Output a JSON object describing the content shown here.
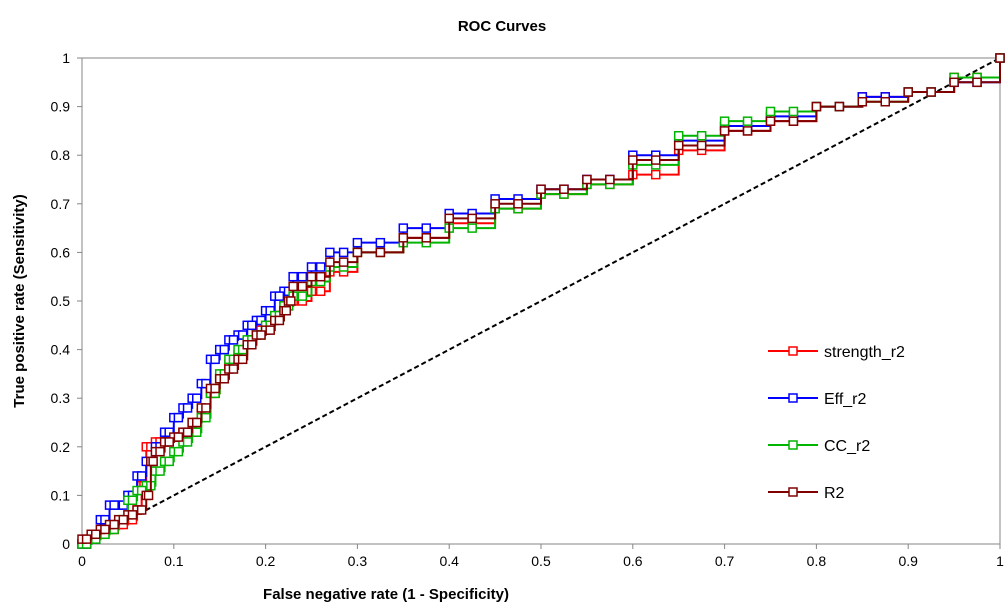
{
  "chart_data": {
    "type": "line",
    "title": "ROC Curves",
    "xlabel": "False negative rate (1 - Specificity)",
    "ylabel": "True positive rate (Sensitivity)",
    "xlim": [
      0,
      1
    ],
    "ylim": [
      0,
      1
    ],
    "x_ticks": [
      "0",
      "0.1",
      "0.2",
      "0.3",
      "0.4",
      "0.5",
      "0.6",
      "0.7",
      "0.8",
      "0.9",
      "1"
    ],
    "y_ticks": [
      "0",
      "0.1",
      "0.2",
      "0.3",
      "0.4",
      "0.5",
      "0.6",
      "0.7",
      "0.8",
      "0.9",
      "1"
    ],
    "grid": false,
    "legend_position": "right",
    "reference_line": {
      "style": "dashed",
      "color": "#000000",
      "points": [
        [
          0,
          0
        ],
        [
          1,
          1
        ]
      ]
    },
    "series": [
      {
        "name": "strength_r2",
        "color": "#ff0000",
        "points": [
          [
            0,
            0
          ],
          [
            0.01,
            0.01
          ],
          [
            0.02,
            0.02
          ],
          [
            0.03,
            0.03
          ],
          [
            0.04,
            0.04
          ],
          [
            0.05,
            0.05
          ],
          [
            0.06,
            0.07
          ],
          [
            0.065,
            0.12
          ],
          [
            0.07,
            0.2
          ],
          [
            0.08,
            0.21
          ],
          [
            0.09,
            0.21
          ],
          [
            0.1,
            0.22
          ],
          [
            0.11,
            0.23
          ],
          [
            0.12,
            0.25
          ],
          [
            0.13,
            0.27
          ],
          [
            0.14,
            0.31
          ],
          [
            0.15,
            0.34
          ],
          [
            0.16,
            0.37
          ],
          [
            0.17,
            0.39
          ],
          [
            0.18,
            0.42
          ],
          [
            0.19,
            0.44
          ],
          [
            0.2,
            0.45
          ],
          [
            0.21,
            0.47
          ],
          [
            0.22,
            0.49
          ],
          [
            0.23,
            0.5
          ],
          [
            0.25,
            0.52
          ],
          [
            0.27,
            0.56
          ],
          [
            0.3,
            0.6
          ],
          [
            0.35,
            0.63
          ],
          [
            0.4,
            0.66
          ],
          [
            0.45,
            0.69
          ],
          [
            0.5,
            0.72
          ],
          [
            0.55,
            0.74
          ],
          [
            0.6,
            0.76
          ],
          [
            0.65,
            0.81
          ],
          [
            0.7,
            0.85
          ],
          [
            0.75,
            0.87
          ],
          [
            0.8,
            0.9
          ],
          [
            0.85,
            0.92
          ],
          [
            0.9,
            0.93
          ],
          [
            0.95,
            0.96
          ],
          [
            1,
            1
          ]
        ]
      },
      {
        "name": "Eff_r2",
        "color": "#0000ff",
        "points": [
          [
            0,
            0
          ],
          [
            0.01,
            0.01
          ],
          [
            0.02,
            0.05
          ],
          [
            0.03,
            0.08
          ],
          [
            0.04,
            0.08
          ],
          [
            0.05,
            0.1
          ],
          [
            0.06,
            0.14
          ],
          [
            0.07,
            0.17
          ],
          [
            0.08,
            0.2
          ],
          [
            0.09,
            0.23
          ],
          [
            0.1,
            0.26
          ],
          [
            0.11,
            0.28
          ],
          [
            0.12,
            0.3
          ],
          [
            0.13,
            0.33
          ],
          [
            0.14,
            0.38
          ],
          [
            0.15,
            0.4
          ],
          [
            0.16,
            0.42
          ],
          [
            0.17,
            0.43
          ],
          [
            0.18,
            0.45
          ],
          [
            0.19,
            0.46
          ],
          [
            0.2,
            0.48
          ],
          [
            0.21,
            0.51
          ],
          [
            0.22,
            0.52
          ],
          [
            0.23,
            0.55
          ],
          [
            0.25,
            0.57
          ],
          [
            0.27,
            0.6
          ],
          [
            0.3,
            0.62
          ],
          [
            0.35,
            0.65
          ],
          [
            0.4,
            0.68
          ],
          [
            0.45,
            0.71
          ],
          [
            0.5,
            0.73
          ],
          [
            0.55,
            0.75
          ],
          [
            0.6,
            0.8
          ],
          [
            0.65,
            0.83
          ],
          [
            0.7,
            0.86
          ],
          [
            0.75,
            0.88
          ],
          [
            0.8,
            0.9
          ],
          [
            0.85,
            0.92
          ],
          [
            0.9,
            0.93
          ],
          [
            0.95,
            0.95
          ],
          [
            1,
            1
          ]
        ]
      },
      {
        "name": "CC_r2",
        "color": "#00b400",
        "points": [
          [
            0,
            0
          ],
          [
            0.01,
            0.01
          ],
          [
            0.02,
            0.02
          ],
          [
            0.03,
            0.03
          ],
          [
            0.04,
            0.05
          ],
          [
            0.05,
            0.09
          ],
          [
            0.06,
            0.11
          ],
          [
            0.07,
            0.12
          ],
          [
            0.08,
            0.15
          ],
          [
            0.09,
            0.17
          ],
          [
            0.1,
            0.19
          ],
          [
            0.11,
            0.21
          ],
          [
            0.12,
            0.23
          ],
          [
            0.13,
            0.26
          ],
          [
            0.14,
            0.31
          ],
          [
            0.15,
            0.35
          ],
          [
            0.16,
            0.38
          ],
          [
            0.17,
            0.4
          ],
          [
            0.18,
            0.42
          ],
          [
            0.19,
            0.43
          ],
          [
            0.2,
            0.45
          ],
          [
            0.21,
            0.47
          ],
          [
            0.22,
            0.49
          ],
          [
            0.23,
            0.51
          ],
          [
            0.25,
            0.54
          ],
          [
            0.27,
            0.57
          ],
          [
            0.3,
            0.6
          ],
          [
            0.35,
            0.62
          ],
          [
            0.4,
            0.65
          ],
          [
            0.45,
            0.69
          ],
          [
            0.5,
            0.72
          ],
          [
            0.55,
            0.74
          ],
          [
            0.6,
            0.78
          ],
          [
            0.65,
            0.84
          ],
          [
            0.7,
            0.87
          ],
          [
            0.75,
            0.89
          ],
          [
            0.8,
            0.9
          ],
          [
            0.85,
            0.91
          ],
          [
            0.9,
            0.93
          ],
          [
            0.95,
            0.96
          ],
          [
            1,
            1
          ]
        ]
      },
      {
        "name": "R2",
        "color": "#800000",
        "points": [
          [
            0,
            0.01
          ],
          [
            0.01,
            0.02
          ],
          [
            0.02,
            0.03
          ],
          [
            0.03,
            0.04
          ],
          [
            0.04,
            0.05
          ],
          [
            0.05,
            0.06
          ],
          [
            0.06,
            0.07
          ],
          [
            0.07,
            0.1
          ],
          [
            0.075,
            0.17
          ],
          [
            0.08,
            0.19
          ],
          [
            0.09,
            0.21
          ],
          [
            0.1,
            0.22
          ],
          [
            0.11,
            0.23
          ],
          [
            0.12,
            0.25
          ],
          [
            0.13,
            0.28
          ],
          [
            0.14,
            0.32
          ],
          [
            0.15,
            0.34
          ],
          [
            0.16,
            0.36
          ],
          [
            0.17,
            0.38
          ],
          [
            0.18,
            0.41
          ],
          [
            0.19,
            0.43
          ],
          [
            0.2,
            0.44
          ],
          [
            0.21,
            0.46
          ],
          [
            0.22,
            0.48
          ],
          [
            0.225,
            0.5
          ],
          [
            0.23,
            0.53
          ],
          [
            0.25,
            0.55
          ],
          [
            0.27,
            0.58
          ],
          [
            0.3,
            0.6
          ],
          [
            0.35,
            0.63
          ],
          [
            0.4,
            0.67
          ],
          [
            0.45,
            0.7
          ],
          [
            0.5,
            0.73
          ],
          [
            0.55,
            0.75
          ],
          [
            0.6,
            0.79
          ],
          [
            0.65,
            0.82
          ],
          [
            0.7,
            0.85
          ],
          [
            0.75,
            0.87
          ],
          [
            0.8,
            0.9
          ],
          [
            0.85,
            0.91
          ],
          [
            0.9,
            0.93
          ],
          [
            0.95,
            0.95
          ],
          [
            1,
            1
          ]
        ]
      }
    ]
  }
}
